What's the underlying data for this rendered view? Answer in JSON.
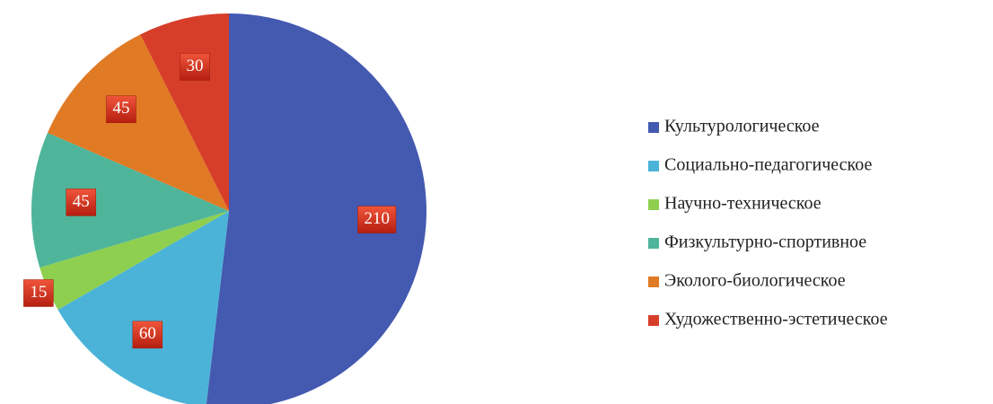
{
  "chart_data": {
    "type": "pie",
    "categories": [
      "Культурологическое",
      "Социально-педагогическое",
      "Научно-техническое",
      "Физкультурно-спортивное",
      "Эколого-биологическое",
      "Художественно-эстетическое"
    ],
    "values": [
      210,
      60,
      15,
      45,
      45,
      30
    ],
    "colors": [
      "#4459b0",
      "#4bb3d8",
      "#8fcf50",
      "#4fb59a",
      "#e07a24",
      "#d63e2a"
    ],
    "legend": "right"
  }
}
